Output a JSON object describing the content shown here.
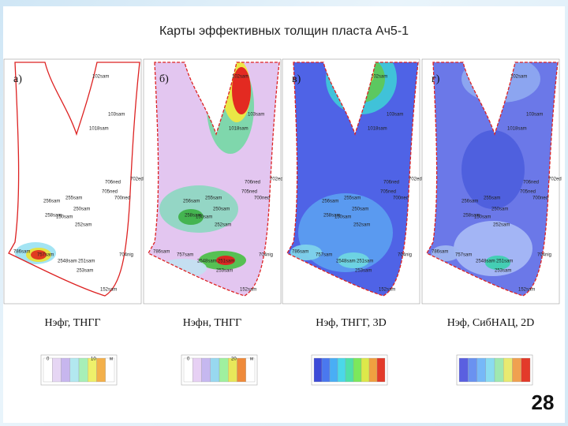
{
  "title": "Карты эффективных толщин пласта Ач5-1",
  "panels": [
    {
      "label": "а)",
      "caption": "Нэфг, ТНГГ",
      "legend": [
        "0",
        "10",
        "м"
      ]
    },
    {
      "label": "б)",
      "caption": "Нэфн, ТНГГ",
      "legend": [
        "0",
        "20",
        "м"
      ]
    },
    {
      "label": "в)",
      "caption": "Нэф, ТНГГ, 3D",
      "legend": []
    },
    {
      "label": "г)",
      "caption": "Нэф, СибНАЦ, 2D",
      "legend": []
    }
  ],
  "wells": [
    "102sam",
    "103sam",
    "1018sam",
    "702ed",
    "706ned",
    "705ned",
    "700ned",
    "256sam",
    "255sam",
    "258sam",
    "250sam",
    "150sam",
    "252sam",
    "786sam",
    "757sam",
    "2548sam",
    "251sam",
    "704nig",
    "253sam",
    "152sam"
  ],
  "slide_number": "28"
}
